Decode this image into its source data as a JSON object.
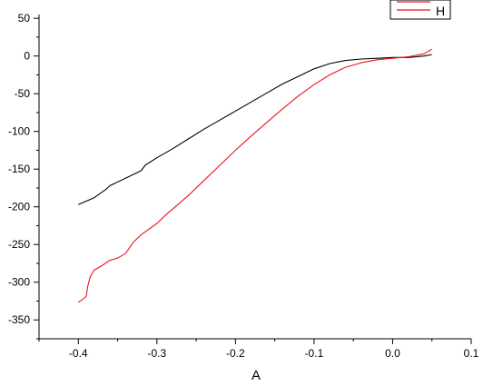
{
  "chart_data": {
    "type": "line",
    "xlabel": "A",
    "ylabel": "",
    "xlim": [
      -0.45,
      0.1
    ],
    "ylim": [
      -375,
      55
    ],
    "x_ticks": [
      -0.4,
      -0.3,
      -0.2,
      -0.1,
      0.0,
      0.1
    ],
    "x_tick_labels": [
      "-0.4",
      "-0.3",
      "-0.2",
      "-0.1",
      "0.0",
      "0.1"
    ],
    "y_ticks": [
      50,
      0,
      -50,
      -100,
      -150,
      -200,
      -250,
      -300,
      -350
    ],
    "y_tick_labels": [
      "50",
      "0",
      "-50",
      "-100",
      "-150",
      "-200",
      "-250",
      "-300",
      "-350"
    ],
    "grid": false,
    "legend_position": "top-right",
    "legend": [
      {
        "label": "",
        "color": "#e8141c"
      },
      {
        "label": "H",
        "color": "#e8141c"
      }
    ],
    "series": [
      {
        "color": "#000000",
        "points": [
          [
            -0.4,
            -197
          ],
          [
            -0.38,
            -188
          ],
          [
            -0.365,
            -177
          ],
          [
            -0.36,
            -172
          ],
          [
            -0.34,
            -162
          ],
          [
            -0.32,
            -152
          ],
          [
            -0.315,
            -145
          ],
          [
            -0.3,
            -135
          ],
          [
            -0.28,
            -123
          ],
          [
            -0.26,
            -110
          ],
          [
            -0.24,
            -97
          ],
          [
            -0.22,
            -85
          ],
          [
            -0.2,
            -73
          ],
          [
            -0.18,
            -61
          ],
          [
            -0.16,
            -49
          ],
          [
            -0.14,
            -37
          ],
          [
            -0.12,
            -27
          ],
          [
            -0.1,
            -17
          ],
          [
            -0.08,
            -10
          ],
          [
            -0.06,
            -6
          ],
          [
            -0.04,
            -4
          ],
          [
            -0.02,
            -3
          ],
          [
            0.0,
            -2
          ],
          [
            0.02,
            -2
          ],
          [
            0.04,
            0
          ],
          [
            0.05,
            2
          ]
        ]
      },
      {
        "color": "#e8141c",
        "points": [
          [
            -0.4,
            -327
          ],
          [
            -0.39,
            -319
          ],
          [
            -0.388,
            -305
          ],
          [
            -0.385,
            -293
          ],
          [
            -0.38,
            -284
          ],
          [
            -0.37,
            -278
          ],
          [
            -0.36,
            -271
          ],
          [
            -0.35,
            -268
          ],
          [
            -0.34,
            -262
          ],
          [
            -0.33,
            -247
          ],
          [
            -0.32,
            -237
          ],
          [
            -0.3,
            -222
          ],
          [
            -0.29,
            -212
          ],
          [
            -0.28,
            -203
          ],
          [
            -0.26,
            -185
          ],
          [
            -0.24,
            -165
          ],
          [
            -0.22,
            -145
          ],
          [
            -0.2,
            -125
          ],
          [
            -0.18,
            -106
          ],
          [
            -0.16,
            -88
          ],
          [
            -0.14,
            -70
          ],
          [
            -0.12,
            -53
          ],
          [
            -0.1,
            -38
          ],
          [
            -0.08,
            -25
          ],
          [
            -0.06,
            -15
          ],
          [
            -0.04,
            -9
          ],
          [
            -0.02,
            -5
          ],
          [
            0.0,
            -3
          ],
          [
            0.02,
            -1
          ],
          [
            0.04,
            3
          ],
          [
            0.05,
            9
          ]
        ]
      }
    ]
  }
}
